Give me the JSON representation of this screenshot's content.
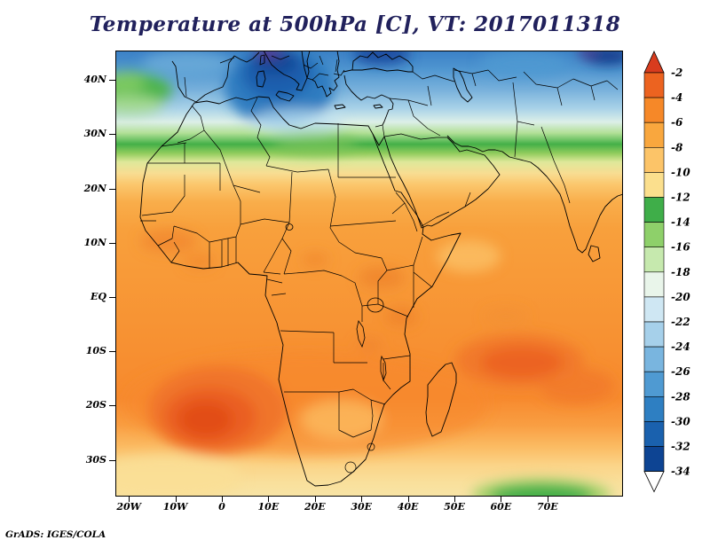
{
  "header": {
    "title": "Temperature at 500hPa [C], VT: 2017011318"
  },
  "footer": {
    "credit": "GrADS: IGES/COLA"
  },
  "axes": {
    "lat_ticks": [
      {
        "label": "40N",
        "deg": 40
      },
      {
        "label": "30N",
        "deg": 30
      },
      {
        "label": "20N",
        "deg": 20
      },
      {
        "label": "10N",
        "deg": 10
      },
      {
        "label": "EQ",
        "deg": 0
      },
      {
        "label": "10S",
        "deg": -10
      },
      {
        "label": "20S",
        "deg": -20
      },
      {
        "label": "30S",
        "deg": -30
      }
    ],
    "lon_ticks": [
      {
        "label": "20W",
        "deg": -20
      },
      {
        "label": "10W",
        "deg": -10
      },
      {
        "label": "0",
        "deg": 0
      },
      {
        "label": "10E",
        "deg": 10
      },
      {
        "label": "20E",
        "deg": 20
      },
      {
        "label": "30E",
        "deg": 30
      },
      {
        "label": "40E",
        "deg": 40
      },
      {
        "label": "50E",
        "deg": 50
      },
      {
        "label": "60E",
        "deg": 60
      },
      {
        "label": "70E",
        "deg": 70
      }
    ]
  },
  "colorbar": {
    "labels": [
      "-2",
      "-4",
      "-6",
      "-8",
      "-10",
      "-12",
      "-14",
      "-16",
      "-18",
      "-20",
      "-22",
      "-24",
      "-26",
      "-28",
      "-30",
      "-32",
      "-34"
    ],
    "above_color": "#d83c1e",
    "below_color": "#ffffff",
    "segment_colors": [
      "#ec6320",
      "#f68828",
      "#f9a73e",
      "#fcc468",
      "#fbdf8d",
      "#3fae49",
      "#8ed06a",
      "#c6e9ae",
      "#e9f5ea",
      "#cfe7f3",
      "#a6d0ea",
      "#79b5df",
      "#4f9ad2",
      "#2e7fc2",
      "#1a61ae",
      "#0d4493"
    ]
  },
  "chart_data": {
    "type": "heatmap",
    "title": "Temperature at 500hPa [C], VT: 2017011318",
    "variable": "Air temperature at 500 hPa",
    "units": "degC",
    "valid_time": "2017011318",
    "x_axis": {
      "label_type": "longitude",
      "ticks": [
        "20W",
        "10W",
        "0",
        "10E",
        "20E",
        "30E",
        "40E",
        "50E",
        "60E",
        "70E"
      ],
      "range_deg": [
        -23,
        86
      ]
    },
    "y_axis": {
      "label_type": "latitude",
      "ticks": [
        "40N",
        "30N",
        "20N",
        "10N",
        "EQ",
        "10S",
        "20S",
        "30S"
      ],
      "range_deg": [
        -37,
        45
      ]
    },
    "contour_levels_c": [
      -34,
      -32,
      -30,
      -28,
      -26,
      -24,
      -22,
      -20,
      -18,
      -16,
      -14,
      -12,
      -10,
      -8,
      -6,
      -4,
      -2
    ],
    "approx_zonal_mean_profile": [
      {
        "lat": "45N",
        "temp_c": -27
      },
      {
        "lat": "40N",
        "temp_c": -24
      },
      {
        "lat": "35N",
        "temp_c": -20
      },
      {
        "lat": "30N",
        "temp_c": -15
      },
      {
        "lat": "25N",
        "temp_c": -11
      },
      {
        "lat": "20N",
        "temp_c": -8
      },
      {
        "lat": "15N",
        "temp_c": -7
      },
      {
        "lat": "10N",
        "temp_c": -6
      },
      {
        "lat": "EQ",
        "temp_c": -6
      },
      {
        "lat": "10S",
        "temp_c": -6
      },
      {
        "lat": "20S",
        "temp_c": -4
      },
      {
        "lat": "30S",
        "temp_c": -7
      },
      {
        "lat": "35S",
        "temp_c": -10
      }
    ],
    "notable_features": [
      "Cold trough of -28 to -34 C over the central Mediterranean and southeastern Europe",
      "Small pockets colder than -34 C along the northern map edge",
      "Green band of -12 to -18 C across northwest Africa near 28-32N and over the eastern Atlantic",
      "Warm cores of -2 to -4 C over the southeast Atlantic near 20S and east of Madagascar near 15-20S",
      "Pale yellow band of -8 to -10 C along the southern map edge with a green -12 C patch near 40E"
    ],
    "legend_position": "right",
    "attribution": "GrADS: IGES/COLA"
  },
  "styles": {
    "title_color": "#21215c",
    "map_line_color": "#000000"
  }
}
